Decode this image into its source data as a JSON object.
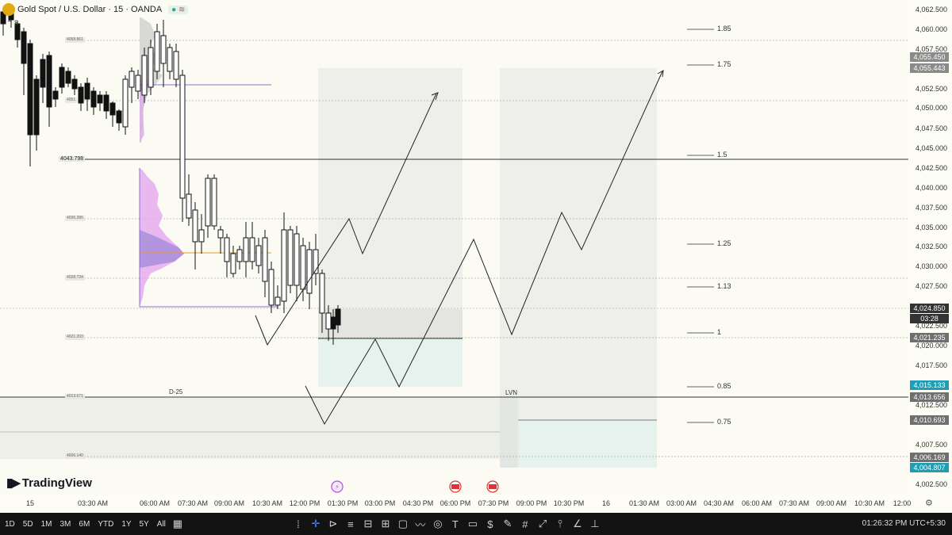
{
  "header": {
    "symbol": "Gold Spot / U.S. Dollar · 15 · OANDA",
    "status_icon": "check-dot",
    "wave_icon": "wave-icon",
    "badge": "8"
  },
  "price_axis": {
    "ticks": [
      "4,062.500",
      "4,060.000",
      "4,057.500",
      "4,052.500",
      "4,050.000",
      "4,047.500",
      "4,045.000",
      "4,042.500",
      "4,040.000",
      "4,037.500",
      "4,035.000",
      "4,032.500",
      "4,030.000",
      "4,027.500",
      "4,022.500",
      "4,020.000",
      "4,017.500",
      "4,012.500",
      "4,007.500",
      "4,002.500"
    ],
    "tags": [
      {
        "value": "4,055.450",
        "color": "#8a8a8a"
      },
      {
        "value": "4,055.443",
        "color": "#8a8a8a"
      },
      {
        "value": "4,024.850",
        "color": "#333333"
      },
      {
        "value": "03:28",
        "color": "#333333"
      },
      {
        "value": "4,021.235",
        "color": "#6f6f6f"
      },
      {
        "value": "4,015.133",
        "color": "#1e9db5"
      },
      {
        "value": "4,013.656",
        "color": "#6f6f6f"
      },
      {
        "value": "4,010.693",
        "color": "#6f6f6f"
      },
      {
        "value": "4,006.169",
        "color": "#6f6f6f"
      },
      {
        "value": "4,004.807",
        "color": "#1e9db5"
      }
    ]
  },
  "time_axis": {
    "labels": [
      "15",
      "03:30 AM",
      "06:00 AM",
      "07:30 AM",
      "09:00 AM",
      "10:30 AM",
      "12:00 PM",
      "01:30 PM",
      "03:00 PM",
      "04:30 PM",
      "06:00 PM",
      "07:30 PM",
      "09:00 PM",
      "10:30 PM",
      "16",
      "01:30 AM",
      "03:00 AM",
      "04:30 AM",
      "06:00 AM",
      "07:30 AM",
      "09:00 AM",
      "10:30 AM",
      "12:00"
    ]
  },
  "fib_levels": [
    "1.85",
    "1.75",
    "1.5",
    "1.25",
    "1.13",
    "1",
    "0.85",
    "0.75"
  ],
  "level_labels": [
    "4058.861",
    "4051",
    "4043.798",
    "4036.286",
    "4028.734",
    "4021.203",
    "4013.671",
    "4006.140"
  ],
  "chart_labels": {
    "d25": "D-25",
    "lvn": "LVN"
  },
  "brand": "TradingView",
  "bottom_bar": {
    "ranges": [
      "1D",
      "5D",
      "1M",
      "3M",
      "6M",
      "YTD",
      "1Y",
      "5Y",
      "All"
    ],
    "clock": "01:26:32 PM UTC+5:30"
  }
}
